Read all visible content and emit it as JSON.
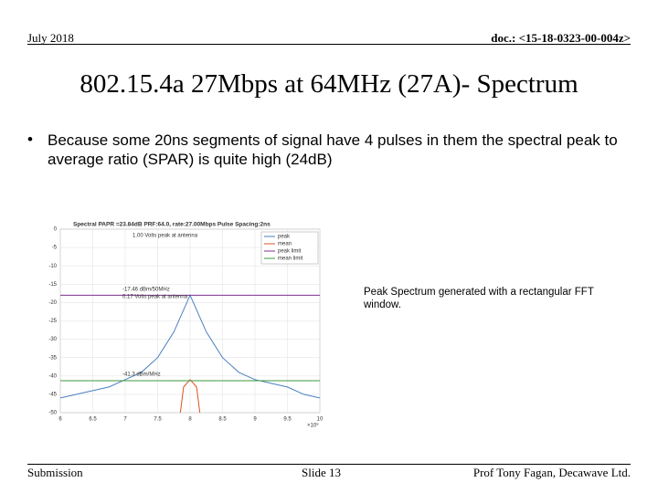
{
  "header": {
    "date": "July 2018",
    "doc": "doc.: <15-18-0323-00-004z>"
  },
  "title": "802.15.4a 27Mbps at 64MHz (27A)- Spectrum",
  "bullets": [
    "Because some 20ns segments of signal have 4 pulses in them the spectral peak to average ratio (SPAR) is quite high (24dB)"
  ],
  "note": "Peak Spectrum generated with a rectangular FFT window.",
  "footer": {
    "left": "Submission",
    "center": "Slide 13",
    "right": "Prof Tony Fagan, Decawave Ltd."
  },
  "chart_data": {
    "type": "line",
    "title": "Spectral PAPR =23.84dB PRF:64.0, rate:27.00Mbps Pulse Spacing:2ns",
    "xlabel": "×10⁹",
    "x": [
      6,
      6.25,
      6.5,
      6.75,
      7,
      7.25,
      7.5,
      7.75,
      8,
      8.25,
      8.5,
      8.75,
      9,
      9.25,
      9.5,
      9.75,
      10
    ],
    "series": [
      {
        "name": "peak",
        "color": "#4a7fc0",
        "values": [
          -46,
          -45,
          -44,
          -43,
          -41,
          -39,
          -35,
          -28,
          -18,
          -28,
          -35,
          -39,
          -41,
          -42,
          -43,
          -45,
          -46
        ]
      },
      {
        "name": "mean",
        "color": "#d9541e",
        "x": [
          7.85,
          7.9,
          8,
          8.1,
          8.15
        ],
        "values": [
          -50,
          -43,
          -41,
          -43,
          -50
        ]
      },
      {
        "name": "peak limit",
        "color": "#7e2f8e",
        "x": [
          6,
          10
        ],
        "values": [
          -18,
          -18
        ]
      },
      {
        "name": "mean limit",
        "color": "#3c9a3c",
        "x": [
          6,
          10
        ],
        "values": [
          -41.3,
          -41.3
        ]
      }
    ],
    "annotations": [
      "1.00 Volts peak at antenna",
      "-17.46 dBm/50MHz",
      "0.17 Volts peak at antenna",
      "-41.3 dBm/MHz"
    ],
    "xlim": [
      6,
      10
    ],
    "xticks": [
      6,
      6.5,
      7,
      7.5,
      8,
      8.5,
      9,
      9.5,
      10
    ],
    "ylim": [
      -50,
      0
    ],
    "yticks": [
      0,
      -5,
      -10,
      -15,
      -20,
      -25,
      -30,
      -35,
      -40,
      -45,
      -50
    ],
    "grid": true,
    "legend": "upper right"
  }
}
